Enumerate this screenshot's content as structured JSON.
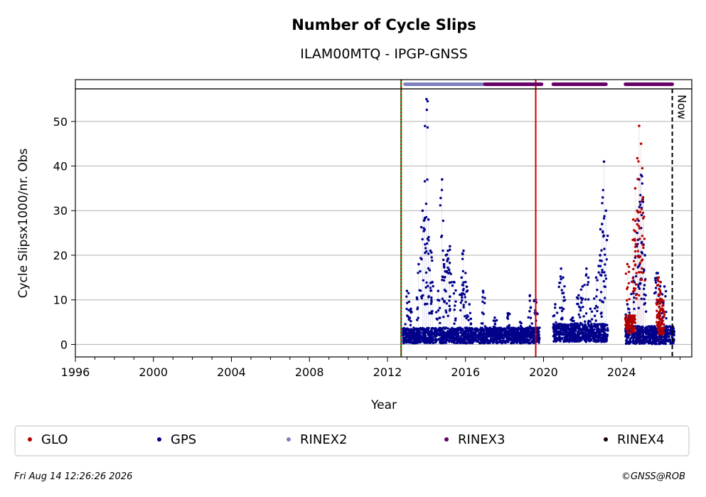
{
  "chart_data": {
    "type": "scatter",
    "title": "Number of Cycle Slips",
    "subtitle": "ILAM00MTQ - IPGP-GNSS",
    "xlabel": "Year",
    "ylabel": "Cycle Slipsx1000/nr. Obs",
    "xlim": [
      1996.0,
      2027.6
    ],
    "ylim": [
      -2.8,
      57.3
    ],
    "xticks": [
      1996,
      2000,
      2004,
      2008,
      2012,
      2016,
      2020,
      2024
    ],
    "xtick_labels": [
      "1996",
      "2000",
      "2004",
      "2008",
      "2012",
      "2016",
      "2020",
      "2024"
    ],
    "yticks": [
      0,
      10,
      20,
      30,
      40,
      50
    ],
    "ytick_labels": [
      "0",
      "10",
      "20",
      "30",
      "40",
      "50"
    ],
    "grid": "horizontal",
    "vlines": [
      {
        "x": 2012.7,
        "color": "#008000",
        "style": "solid"
      },
      {
        "x": 2012.7,
        "color": "#cc0000",
        "style": "dotted"
      },
      {
        "x": 2019.6,
        "color": "#cc0000",
        "style": "solid"
      },
      {
        "x": 2026.6,
        "color": "#000000",
        "style": "dashed",
        "label": "Now"
      }
    ],
    "rinex_bars": [
      {
        "name": "RINEX2",
        "from": 2012.9,
        "to": 2017.0,
        "color": "#8080c0"
      },
      {
        "name": "RINEX3",
        "from": 2017.0,
        "to": 2019.9,
        "color": "#660066"
      },
      {
        "name": "RINEX3",
        "from": 2020.5,
        "to": 2023.2,
        "color": "#660066"
      },
      {
        "name": "RINEX3",
        "from": 2024.2,
        "to": 2026.6,
        "color": "#660066"
      }
    ],
    "series": [
      {
        "name": "GPS",
        "color": "#00008b",
        "segments": [
          {
            "from": 2012.8,
            "to": 2019.8,
            "base": 1.5,
            "spread": 3.5
          },
          {
            "from": 2020.5,
            "to": 2023.3,
            "base": 2.0,
            "spread": 4.0
          },
          {
            "from": 2024.2,
            "to": 2026.7,
            "base": 1.5,
            "spread": 4.0
          }
        ],
        "peaks": [
          [
            2013.0,
            12
          ],
          [
            2013.2,
            8
          ],
          [
            2013.6,
            18
          ],
          [
            2013.8,
            30
          ],
          [
            2013.9,
            28
          ],
          [
            2014.0,
            55
          ],
          [
            2014.1,
            28
          ],
          [
            2014.2,
            21
          ],
          [
            2014.3,
            14
          ],
          [
            2014.6,
            12
          ],
          [
            2014.8,
            37
          ],
          [
            2014.9,
            18
          ],
          [
            2015.0,
            20
          ],
          [
            2015.1,
            21
          ],
          [
            2015.2,
            22
          ],
          [
            2015.4,
            14
          ],
          [
            2015.8,
            15
          ],
          [
            2015.9,
            21
          ],
          [
            2016.0,
            14
          ],
          [
            2016.2,
            9
          ],
          [
            2016.9,
            12
          ],
          [
            2017.5,
            6
          ],
          [
            2018.2,
            7
          ],
          [
            2018.8,
            5
          ],
          [
            2019.3,
            11
          ],
          [
            2019.6,
            10
          ],
          [
            2020.6,
            9
          ],
          [
            2020.9,
            17
          ],
          [
            2021.0,
            15
          ],
          [
            2021.5,
            6
          ],
          [
            2021.8,
            11
          ],
          [
            2022.0,
            13
          ],
          [
            2022.2,
            17
          ],
          [
            2022.4,
            8
          ],
          [
            2022.7,
            15
          ],
          [
            2022.9,
            20
          ],
          [
            2023.0,
            27
          ],
          [
            2023.1,
            41
          ],
          [
            2023.2,
            30
          ],
          [
            2024.3,
            9
          ],
          [
            2024.6,
            15
          ],
          [
            2024.8,
            25
          ],
          [
            2024.9,
            37
          ],
          [
            2025.0,
            38
          ],
          [
            2025.1,
            32
          ],
          [
            2025.2,
            20
          ],
          [
            2025.8,
            16
          ],
          [
            2026.0,
            14
          ],
          [
            2026.2,
            13
          ]
        ]
      },
      {
        "name": "GLO",
        "color": "#b30000",
        "segments": [
          {
            "from": 2024.2,
            "to": 2024.7,
            "base": 4.0,
            "spread": 4.0
          },
          {
            "from": 2025.8,
            "to": 2026.2,
            "base": 5.0,
            "spread": 8.0
          }
        ],
        "peaks": [
          [
            2024.3,
            18
          ],
          [
            2024.6,
            28
          ],
          [
            2024.7,
            35
          ],
          [
            2024.8,
            30
          ],
          [
            2024.9,
            49
          ],
          [
            2025.0,
            45
          ],
          [
            2025.1,
            33
          ],
          [
            2025.9,
            15
          ],
          [
            2026.0,
            14
          ]
        ]
      }
    ],
    "legend": {
      "placement": "bottom",
      "entries": [
        {
          "label": "GLO",
          "color": "#b30000"
        },
        {
          "label": "GPS",
          "color": "#00008b"
        },
        {
          "label": "RINEX2",
          "color": "#8080c0"
        },
        {
          "label": "RINEX3",
          "color": "#660066"
        },
        {
          "label": "RINEX4",
          "color": "#1a0010"
        }
      ]
    }
  },
  "footer": {
    "timestamp": "Fri Aug 14 12:26:26 2026",
    "credit": "©GNSS@ROB"
  }
}
